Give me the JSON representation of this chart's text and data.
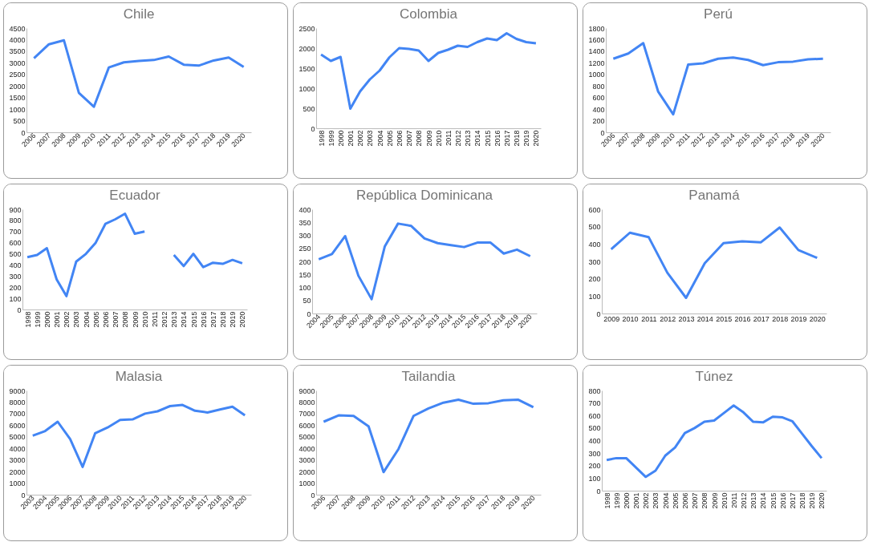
{
  "chart_data": [
    {
      "type": "line",
      "title": "Chile",
      "categories": [
        "2006",
        "2007",
        "2008",
        "2009",
        "2010",
        "2011",
        "2012",
        "2013",
        "2014",
        "2015",
        "2016",
        "2017",
        "2018",
        "2019",
        "2020"
      ],
      "series": [
        {
          "color": "#4285f4",
          "values": [
            3200,
            3800,
            3970,
            1700,
            1100,
            2800,
            3020,
            3080,
            3120,
            3270,
            2920,
            2880,
            3100,
            3230,
            2820
          ]
        }
      ],
      "ylim": [
        0,
        4500
      ],
      "yticks": [
        0,
        500,
        1000,
        1500,
        2000,
        2500,
        3000,
        3500,
        4000,
        4500
      ]
    },
    {
      "type": "line",
      "title": "Colombia",
      "categories": [
        "1998",
        "1999",
        "2000",
        "2001",
        "2002",
        "2003",
        "2004",
        "2005",
        "2006",
        "2007",
        "2008",
        "2009",
        "2010",
        "2011",
        "2012",
        "2013",
        "2014",
        "2015",
        "2016",
        "2017",
        "2018",
        "2019",
        "2020"
      ],
      "series": [
        {
          "color": "#4285f4",
          "values": [
            1840,
            1680,
            1780,
            490,
            920,
            1220,
            1440,
            1770,
            2000,
            1980,
            1940,
            1680,
            1880,
            1960,
            2060,
            2030,
            2150,
            2240,
            2200,
            2370,
            2230,
            2150,
            2120
          ]
        }
      ],
      "ylim": [
        0,
        2500
      ],
      "yticks": [
        0,
        500,
        1000,
        1500,
        2000,
        2500
      ]
    },
    {
      "type": "line",
      "title": "Perú",
      "categories": [
        "2006",
        "2007",
        "2008",
        "2009",
        "2010",
        "2011",
        "2012",
        "2013",
        "2014",
        "2015",
        "2016",
        "2017",
        "2018",
        "2019",
        "2020"
      ],
      "series": [
        {
          "color": "#4285f4",
          "values": [
            1270,
            1360,
            1540,
            700,
            310,
            1170,
            1190,
            1270,
            1290,
            1250,
            1160,
            1210,
            1220,
            1260,
            1270
          ]
        }
      ],
      "ylim": [
        0,
        1800
      ],
      "yticks": [
        0,
        200,
        400,
        600,
        800,
        1000,
        1200,
        1400,
        1600,
        1800
      ]
    },
    {
      "type": "line",
      "title": "Ecuador",
      "categories": [
        "1998",
        "1999",
        "2000",
        "2001",
        "2002",
        "2003",
        "2004",
        "2005",
        "2006",
        "2007",
        "2008",
        "2009",
        "2010",
        "2011",
        "2012",
        "2013",
        "2014",
        "2015",
        "2016",
        "2017",
        "2018",
        "2019",
        "2020"
      ],
      "series": [
        {
          "color": "#4285f4",
          "values": [
            470,
            490,
            550,
            270,
            120,
            430,
            500,
            600,
            770,
            810,
            860,
            680,
            700,
            null,
            null,
            490,
            390,
            500,
            380,
            420,
            410,
            445,
            415
          ]
        }
      ],
      "ylim": [
        0,
        900
      ],
      "yticks": [
        0,
        100,
        200,
        300,
        400,
        500,
        600,
        700,
        800,
        900
      ]
    },
    {
      "type": "line",
      "title": "República Dominicana",
      "categories": [
        "2004",
        "2005",
        "2006",
        "2007",
        "2008",
        "2009",
        "2010",
        "2011",
        "2012",
        "2013",
        "2014",
        "2015",
        "2016",
        "2017",
        "2018",
        "2019",
        "2020"
      ],
      "series": [
        {
          "color": "#4285f4",
          "values": [
            208,
            228,
            297,
            145,
            55,
            258,
            345,
            336,
            288,
            270,
            262,
            255,
            272,
            272,
            230,
            245,
            220
          ]
        }
      ],
      "ylim": [
        0,
        400
      ],
      "yticks": [
        0,
        50,
        100,
        150,
        200,
        250,
        300,
        350,
        400
      ]
    },
    {
      "type": "line",
      "title": "Panamá",
      "categories": [
        "2009",
        "2010",
        "2011",
        "2012",
        "2013",
        "2014",
        "2015",
        "2016",
        "2017",
        "2018",
        "2019",
        "2020"
      ],
      "series": [
        {
          "color": "#4285f4",
          "values": [
            370,
            465,
            440,
            235,
            90,
            290,
            405,
            415,
            410,
            495,
            365,
            320
          ]
        }
      ],
      "ylim": [
        0,
        600
      ],
      "yticks": [
        0,
        100,
        200,
        300,
        400,
        500,
        600
      ]
    },
    {
      "type": "line",
      "title": "Malasia",
      "categories": [
        "2003",
        "2004",
        "2005",
        "2006",
        "2007",
        "2008",
        "2009",
        "2010",
        "2011",
        "2012",
        "2013",
        "2014",
        "2015",
        "2016",
        "2017",
        "2018",
        "2019",
        "2020"
      ],
      "series": [
        {
          "color": "#4285f4",
          "values": [
            5100,
            5500,
            6300,
            4800,
            2400,
            5300,
            5800,
            6450,
            6500,
            7000,
            7200,
            7650,
            7750,
            7250,
            7100,
            7350,
            7600,
            6850
          ]
        }
      ],
      "ylim": [
        0,
        9000
      ],
      "yticks": [
        0,
        1000,
        2000,
        3000,
        4000,
        5000,
        6000,
        7000,
        8000,
        9000
      ]
    },
    {
      "type": "line",
      "title": "Tailandia",
      "categories": [
        "2006",
        "2007",
        "2008",
        "2009",
        "2010",
        "2011",
        "2012",
        "2013",
        "2014",
        "2015",
        "2016",
        "2017",
        "2018",
        "2019",
        "2020"
      ],
      "series": [
        {
          "color": "#4285f4",
          "values": [
            6300,
            6850,
            6800,
            5900,
            1950,
            3950,
            6800,
            7450,
            7950,
            8200,
            7850,
            7900,
            8150,
            8200,
            7550
          ]
        }
      ],
      "ylim": [
        0,
        9000
      ],
      "yticks": [
        0,
        1000,
        2000,
        3000,
        4000,
        5000,
        6000,
        7000,
        8000,
        9000
      ]
    },
    {
      "type": "line",
      "title": "Túnez",
      "categories": [
        "1998",
        "1999",
        "2000",
        "2001",
        "2002",
        "2003",
        "2004",
        "2005",
        "2006",
        "2007",
        "2008",
        "2009",
        "2010",
        "2011",
        "2012",
        "2013",
        "2014",
        "2015",
        "2016",
        "2017",
        "2018",
        "2019",
        "2020"
      ],
      "series": [
        {
          "color": "#4285f4",
          "values": [
            245,
            260,
            260,
            185,
            110,
            160,
            280,
            345,
            460,
            500,
            550,
            560,
            620,
            680,
            625,
            550,
            545,
            590,
            585,
            555,
            455,
            355,
            260
          ]
        }
      ],
      "ylim": [
        0,
        800
      ],
      "yticks": [
        0,
        100,
        200,
        300,
        400,
        500,
        600,
        700,
        800
      ]
    }
  ]
}
